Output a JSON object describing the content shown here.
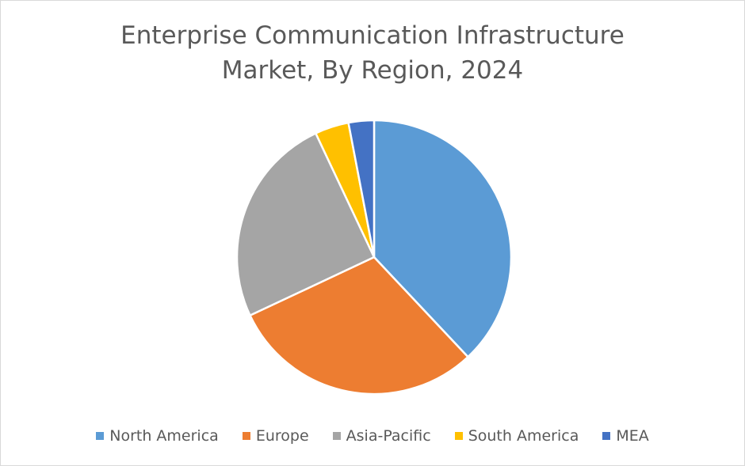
{
  "chart_data": {
    "type": "pie",
    "title_lines": [
      "Enterprise Communication Infrastructure",
      "Market, By Region, 2024"
    ],
    "categories": [
      "North America",
      "Europe",
      "Asia-Pacific",
      "South America",
      "MEA"
    ],
    "values": [
      38,
      30,
      25,
      4,
      3
    ],
    "colors": [
      "#5B9BD5",
      "#ED7D31",
      "#A5A5A5",
      "#FFC000",
      "#4472C4"
    ],
    "legend_position": "bottom",
    "start_angle": "12 o'clock, clockwise"
  }
}
